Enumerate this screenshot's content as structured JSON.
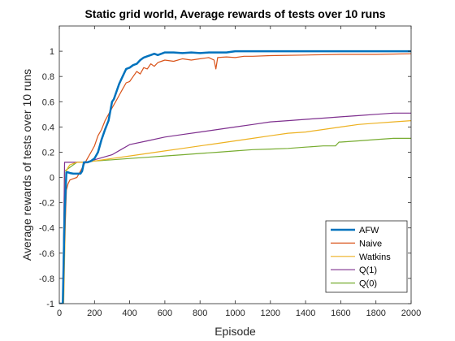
{
  "chart_data": {
    "type": "line",
    "title": "Static grid world, Average rewards of tests over 10 runs",
    "xlabel": "Episode",
    "ylabel": "Average rewards of tests over 10 runs",
    "xlim": [
      0,
      2000
    ],
    "ylim": [
      -1,
      1.2
    ],
    "xticks": [
      0,
      200,
      400,
      600,
      800,
      1000,
      1200,
      1400,
      1600,
      1800,
      2000
    ],
    "yticks": [
      -1,
      -0.8,
      -0.6,
      -0.4,
      -0.2,
      0,
      0.2,
      0.4,
      0.6,
      0.8,
      1
    ],
    "ytick_labels": [
      "-1",
      "-0.8",
      "-0.6",
      "-0.4",
      "-0.2",
      "0",
      "0.2",
      "0.4",
      "0.6",
      "0.8",
      "1"
    ],
    "grid": false,
    "legend_position": "bottom-right",
    "series": [
      {
        "name": "AFW",
        "color": "#0072bd",
        "width": 2.5,
        "x": [
          0,
          20,
          30,
          40,
          50,
          60,
          80,
          100,
          120,
          130,
          140,
          160,
          180,
          200,
          220,
          240,
          260,
          280,
          300,
          310,
          320,
          340,
          360,
          380,
          400,
          420,
          440,
          460,
          480,
          500,
          520,
          540,
          560,
          580,
          600,
          650,
          700,
          750,
          800,
          850,
          900,
          950,
          1000,
          1050,
          1100,
          1200,
          1400,
          1600,
          1800,
          2000
        ],
        "y": [
          -1,
          -1,
          -0.3,
          0.04,
          0.04,
          0.035,
          0.03,
          0.03,
          0.03,
          0.05,
          0.12,
          0.12,
          0.13,
          0.15,
          0.2,
          0.3,
          0.38,
          0.45,
          0.6,
          0.62,
          0.66,
          0.74,
          0.8,
          0.86,
          0.87,
          0.89,
          0.9,
          0.93,
          0.95,
          0.96,
          0.97,
          0.98,
          0.97,
          0.98,
          0.99,
          0.99,
          0.985,
          0.99,
          0.985,
          0.99,
          0.99,
          0.99,
          1,
          1,
          1,
          1,
          1,
          1,
          1,
          1
        ]
      },
      {
        "name": "Naive",
        "color": "#d95319",
        "width": 1.2,
        "x": [
          0,
          20,
          30,
          40,
          50,
          60,
          80,
          100,
          120,
          140,
          160,
          180,
          200,
          220,
          240,
          260,
          280,
          300,
          320,
          340,
          360,
          380,
          400,
          420,
          440,
          460,
          480,
          500,
          520,
          540,
          560,
          580,
          600,
          650,
          700,
          750,
          800,
          850,
          880,
          890,
          900,
          950,
          1000,
          1050,
          1100,
          1200,
          1400,
          1600,
          1800,
          2000
        ],
        "y": [
          -1,
          -1,
          -0.5,
          -0.1,
          -0.05,
          -0.02,
          -0.01,
          0,
          0.05,
          0.1,
          0.15,
          0.2,
          0.25,
          0.33,
          0.38,
          0.45,
          0.5,
          0.55,
          0.6,
          0.65,
          0.7,
          0.75,
          0.76,
          0.8,
          0.84,
          0.82,
          0.87,
          0.86,
          0.9,
          0.88,
          0.91,
          0.92,
          0.93,
          0.92,
          0.94,
          0.93,
          0.94,
          0.95,
          0.93,
          0.86,
          0.95,
          0.955,
          0.95,
          0.96,
          0.96,
          0.965,
          0.97,
          0.975,
          0.975,
          0.98
        ]
      },
      {
        "name": "Watkins",
        "color": "#edb120",
        "width": 1.2,
        "x": [
          0,
          25,
          40,
          50,
          60,
          80,
          100,
          150,
          200,
          300,
          400,
          500,
          600,
          700,
          800,
          900,
          1000,
          1100,
          1200,
          1300,
          1400,
          1500,
          1600,
          1700,
          1800,
          1900,
          2000
        ],
        "y": [
          -1,
          -1,
          0.05,
          0.08,
          0.1,
          0.11,
          0.12,
          0.12,
          0.13,
          0.15,
          0.17,
          0.19,
          0.21,
          0.23,
          0.25,
          0.27,
          0.29,
          0.31,
          0.33,
          0.35,
          0.36,
          0.38,
          0.4,
          0.42,
          0.43,
          0.44,
          0.45
        ]
      },
      {
        "name": "Q(1)",
        "color": "#7e2f8e",
        "width": 1.2,
        "x": [
          0,
          20,
          30,
          40,
          60,
          100,
          150,
          200,
          250,
          300,
          350,
          400,
          500,
          600,
          700,
          800,
          900,
          1000,
          1100,
          1200,
          1300,
          1400,
          1500,
          1600,
          1700,
          1800,
          1900,
          2000
        ],
        "y": [
          -1,
          -1,
          0.12,
          0.12,
          0.12,
          0.12,
          0.12,
          0.14,
          0.16,
          0.18,
          0.22,
          0.26,
          0.29,
          0.32,
          0.34,
          0.36,
          0.38,
          0.4,
          0.42,
          0.44,
          0.45,
          0.46,
          0.47,
          0.48,
          0.49,
          0.5,
          0.51,
          0.51
        ]
      },
      {
        "name": "Q(0)",
        "color": "#77ac30",
        "width": 1.2,
        "x": [
          0,
          20,
          30,
          40,
          60,
          80,
          100,
          150,
          200,
          300,
          400,
          500,
          600,
          700,
          800,
          900,
          1000,
          1100,
          1200,
          1300,
          1400,
          1500,
          1570,
          1590,
          1600,
          1700,
          1800,
          1900,
          2000
        ],
        "y": [
          -1,
          -1,
          0.05,
          0.06,
          0.08,
          0.1,
          0.12,
          0.12,
          0.13,
          0.14,
          0.15,
          0.16,
          0.17,
          0.18,
          0.19,
          0.2,
          0.21,
          0.22,
          0.225,
          0.23,
          0.24,
          0.25,
          0.25,
          0.28,
          0.28,
          0.29,
          0.3,
          0.31,
          0.31
        ]
      }
    ]
  }
}
